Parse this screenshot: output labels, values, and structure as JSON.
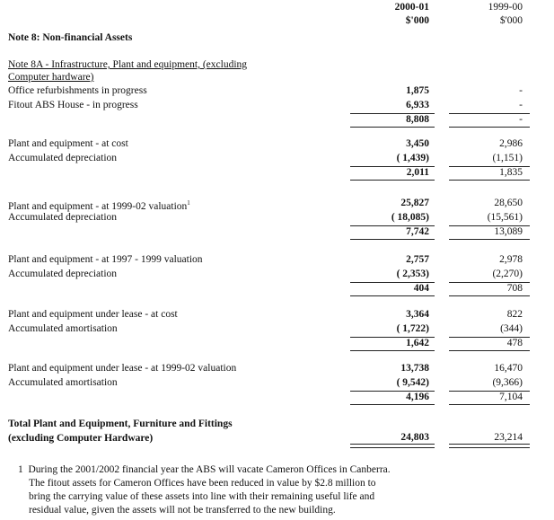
{
  "header": {
    "col1_year": "2000-01",
    "col1_unit": "$'000",
    "col2_year": "1999-00",
    "col2_unit": "$'000"
  },
  "note_title": "Note 8: Non-financial Assets",
  "subnote": {
    "title_line1": "Note 8A - Infrastructure, Plant and equipment, (excluding",
    "title_line2": "Computer hardware)"
  },
  "groups": [
    {
      "rows": [
        {
          "label": "Office refurbishments in progress",
          "c1": "1,875",
          "c2": "-"
        },
        {
          "label": "Fitout ABS House - in progress",
          "c1": "6,933",
          "c2": "-"
        }
      ],
      "total": {
        "c1": "8,808",
        "c2": "-"
      }
    },
    {
      "rows": [
        {
          "label": "Plant and equipment - at cost",
          "c1": "3,450",
          "c2": "2,986"
        },
        {
          "label": "Accumulated depreciation",
          "c1": "( 1,439)",
          "c2": "(1,151)"
        }
      ],
      "total": {
        "c1": "2,011",
        "c2": "1,835"
      }
    },
    {
      "rows": [
        {
          "label": "Plant and equipment - at 1999-02 valuation",
          "sup": "1",
          "c1": "25,827",
          "c2": "28,650"
        },
        {
          "label": "Accumulated depreciation",
          "c1": "( 18,085)",
          "c2": "(15,561)"
        }
      ],
      "total": {
        "c1": "7,742",
        "c2": "13,089"
      }
    },
    {
      "rows": [
        {
          "label": "Plant and equipment - at 1997 - 1999 valuation",
          "c1": "2,757",
          "c2": "2,978"
        },
        {
          "label": "Accumulated depreciation",
          "c1": "( 2,353)",
          "c2": "(2,270)"
        }
      ],
      "total": {
        "c1": "404",
        "c2": "708"
      }
    },
    {
      "rows": [
        {
          "label": "Plant and equipment under lease - at cost",
          "c1": "3,364",
          "c2": "822"
        },
        {
          "label": "Accumulated amortisation",
          "c1": "( 1,722)",
          "c2": "(344)"
        }
      ],
      "total": {
        "c1": "1,642",
        "c2": "478"
      }
    },
    {
      "rows": [
        {
          "label": "Plant and equipment under lease - at 1999-02 valuation",
          "c1": "13,738",
          "c2": "16,470"
        },
        {
          "label": "Accumulated amortisation",
          "c1": "( 9,542)",
          "c2": "(9,366)"
        }
      ],
      "total": {
        "c1": "4,196",
        "c2": "7,104"
      }
    }
  ],
  "grand_total": {
    "label_line1": "Total Plant and Equipment, Furniture and Fittings",
    "label_line2": "(excluding Computer Hardware)",
    "c1": "24,803",
    "c2": "23,214"
  },
  "footnote": {
    "marker": "1",
    "line1": "During the 2001/2002 financial year the ABS will vacate Cameron Offices in Canberra.",
    "line2": "The fitout assets for Cameron Offices have been reduced in value by $2.8 million to",
    "line3": "bring the carrying value of these assets into line with their remaining useful life and",
    "line4": "residual value, given the assets will not be transferred to the new building."
  }
}
